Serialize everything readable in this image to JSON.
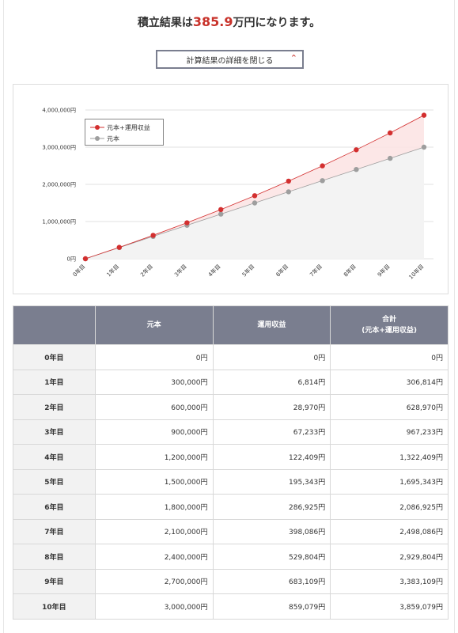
{
  "headline": {
    "prefix": "積立結果は",
    "amount": "385.9",
    "suffix": "万円になります。"
  },
  "toggle": {
    "label": "計算結果の詳細を閉じる",
    "icon": "chevron-up-icon"
  },
  "chart_data": {
    "type": "area",
    "categories": [
      "0年目",
      "1年目",
      "2年目",
      "3年目",
      "4年目",
      "5年目",
      "6年目",
      "7年目",
      "8年目",
      "9年目",
      "10年目"
    ],
    "series": [
      {
        "name": "元本+運用収益",
        "color": "#d32f2f",
        "values": [
          0,
          306814,
          628970,
          967233,
          1322409,
          1695343,
          2086925,
          2498086,
          2929804,
          3383109,
          3859079
        ]
      },
      {
        "name": "元本",
        "color": "#9e9e9e",
        "values": [
          0,
          300000,
          600000,
          900000,
          1200000,
          1500000,
          1800000,
          2100000,
          2400000,
          2700000,
          3000000
        ]
      }
    ],
    "yticks": [
      "0円",
      "1,000,000円",
      "2,000,000円",
      "3,000,000円",
      "4,000,000円"
    ],
    "ylim": [
      0,
      4000000
    ],
    "grid": true,
    "legend_position": "top-left"
  },
  "table": {
    "headers": [
      "",
      "元本",
      "運用収益",
      "合計",
      "(元本+運用収益)"
    ],
    "rows": [
      [
        "0年目",
        "0円",
        "0円",
        "0円"
      ],
      [
        "1年目",
        "300,000円",
        "6,814円",
        "306,814円"
      ],
      [
        "2年目",
        "600,000円",
        "28,970円",
        "628,970円"
      ],
      [
        "3年目",
        "900,000円",
        "67,233円",
        "967,233円"
      ],
      [
        "4年目",
        "1,200,000円",
        "122,409円",
        "1,322,409円"
      ],
      [
        "5年目",
        "1,500,000円",
        "195,343円",
        "1,695,343円"
      ],
      [
        "6年目",
        "1,800,000円",
        "286,925円",
        "2,086,925円"
      ],
      [
        "7年目",
        "2,100,000円",
        "398,086円",
        "2,498,086円"
      ],
      [
        "8年目",
        "2,400,000円",
        "529,804円",
        "2,929,804円"
      ],
      [
        "9年目",
        "2,700,000円",
        "683,109円",
        "3,383,109円"
      ],
      [
        "10年目",
        "3,000,000円",
        "859,079円",
        "3,859,079円"
      ]
    ]
  }
}
